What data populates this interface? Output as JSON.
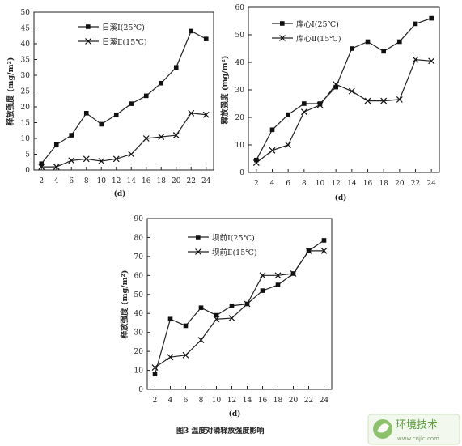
{
  "caption": "图3 温度对磷释放强度影响",
  "watermark": {
    "title": "环境技术",
    "url": "www.cnjlc.com"
  },
  "chart_data": [
    {
      "type": "line",
      "xlabel": "(d)",
      "ylabel": "释放强度 (mg/m²)",
      "x": [
        2,
        4,
        6,
        8,
        10,
        12,
        14,
        16,
        18,
        20,
        22,
        24
      ],
      "xticks": [
        "2",
        "4",
        "6",
        "8",
        "10",
        "12",
        "14",
        "16",
        "18",
        "20",
        "22",
        "24"
      ],
      "ylim": [
        0,
        50
      ],
      "yticks": [
        "0",
        "5",
        "10",
        "15",
        "20",
        "25",
        "30",
        "35",
        "40",
        "45",
        "50"
      ],
      "legend_position": "top-left",
      "series": [
        {
          "name": "日溪Ⅰ(25℃)",
          "marker": "square",
          "values": [
            2,
            8,
            11,
            18,
            14.5,
            17.5,
            21,
            23.5,
            27.5,
            32.5,
            44,
            41.5
          ]
        },
        {
          "name": "日溪Ⅱ(15℃)",
          "marker": "x",
          "values": [
            1,
            1,
            3,
            3.5,
            2.8,
            3.5,
            5,
            10,
            10.5,
            11,
            18,
            17.5
          ]
        }
      ]
    },
    {
      "type": "line",
      "xlabel": "(d)",
      "ylabel": "释放强度 (mg/m²)",
      "x": [
        2,
        4,
        6,
        8,
        10,
        12,
        14,
        16,
        18,
        20,
        22,
        24
      ],
      "xticks": [
        "2",
        "4",
        "6",
        "8",
        "10",
        "12",
        "14",
        "16",
        "18",
        "20",
        "22",
        "24"
      ],
      "ylim": [
        0,
        60
      ],
      "yticks": [
        "0",
        "10",
        "20",
        "30",
        "40",
        "50",
        "60"
      ],
      "legend_position": "top-left",
      "series": [
        {
          "name": "库心Ⅰ(25℃)",
          "marker": "square",
          "values": [
            4.5,
            15.5,
            21,
            25,
            25,
            31,
            45,
            47.5,
            44,
            47.5,
            54,
            56
          ]
        },
        {
          "name": "库心Ⅱ(15℃)",
          "marker": "x",
          "values": [
            3.5,
            8,
            10,
            22,
            24.5,
            32,
            29.5,
            26,
            26,
            26.5,
            41,
            40.5
          ]
        }
      ]
    },
    {
      "type": "line",
      "xlabel": "(d)",
      "ylabel": "释放强度 (mg/m²)",
      "x": [
        2,
        4,
        6,
        8,
        10,
        12,
        14,
        16,
        18,
        20,
        22,
        24
      ],
      "xticks": [
        "2",
        "4",
        "6",
        "8",
        "10",
        "12",
        "14",
        "16",
        "18",
        "20",
        "22",
        "24"
      ],
      "ylim": [
        0,
        90
      ],
      "yticks": [
        "0",
        "10",
        "20",
        "30",
        "40",
        "50",
        "60",
        "70",
        "80",
        "90"
      ],
      "legend_position": "top-center",
      "series": [
        {
          "name": "坝前Ⅰ(25℃)",
          "marker": "square",
          "values": [
            8,
            37,
            33.5,
            43,
            39,
            44,
            45,
            52,
            55,
            61,
            73,
            78.5
          ]
        },
        {
          "name": "坝前Ⅱ(15℃)",
          "marker": "x",
          "values": [
            11.5,
            17,
            18,
            26,
            37,
            37.5,
            45,
            60,
            60,
            61,
            73,
            73
          ]
        }
      ]
    }
  ]
}
